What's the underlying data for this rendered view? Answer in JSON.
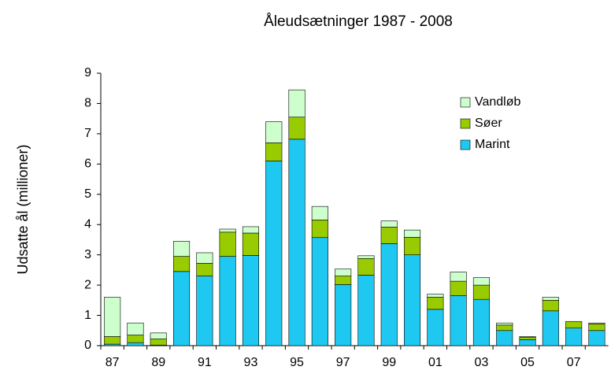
{
  "chart_data": {
    "type": "stacked_bar",
    "title": "Åleudsætninger 1987 - 2008",
    "y_label": "Udsatte ål (millioner)",
    "categories": [
      "87",
      null,
      "89",
      null,
      "91",
      null,
      "93",
      null,
      "95",
      null,
      "97",
      null,
      "99",
      null,
      "01",
      null,
      "03",
      null,
      "05",
      null,
      "07",
      null
    ],
    "series": [
      {
        "name": "Marint",
        "color": "#1ec8f0",
        "values": [
          0.05,
          0.1,
          0.02,
          2.45,
          2.3,
          2.95,
          2.98,
          6.1,
          6.82,
          3.57,
          2.02,
          2.33,
          3.37,
          3.0,
          1.2,
          1.65,
          1.53,
          0.5,
          0.2,
          1.15,
          0.58,
          0.5
        ]
      },
      {
        "name": "Søer",
        "color": "#99cc00",
        "values": [
          0.25,
          0.25,
          0.2,
          0.5,
          0.42,
          0.8,
          0.74,
          0.6,
          0.73,
          0.58,
          0.28,
          0.55,
          0.55,
          0.58,
          0.4,
          0.48,
          0.47,
          0.18,
          0.08,
          0.35,
          0.22,
          0.22
        ]
      },
      {
        "name": "Vandløb",
        "color": "#ccffcc",
        "values": [
          1.3,
          0.4,
          0.2,
          0.5,
          0.35,
          0.1,
          0.21,
          0.7,
          0.9,
          0.45,
          0.23,
          0.09,
          0.2,
          0.24,
          0.1,
          0.3,
          0.25,
          0.07,
          0.02,
          0.1,
          0,
          0.03
        ]
      }
    ],
    "ylim": [
      0,
      9
    ],
    "yticks": [
      0,
      1,
      2,
      3,
      4,
      5,
      6,
      7,
      8,
      9
    ],
    "legend": "upper right"
  }
}
